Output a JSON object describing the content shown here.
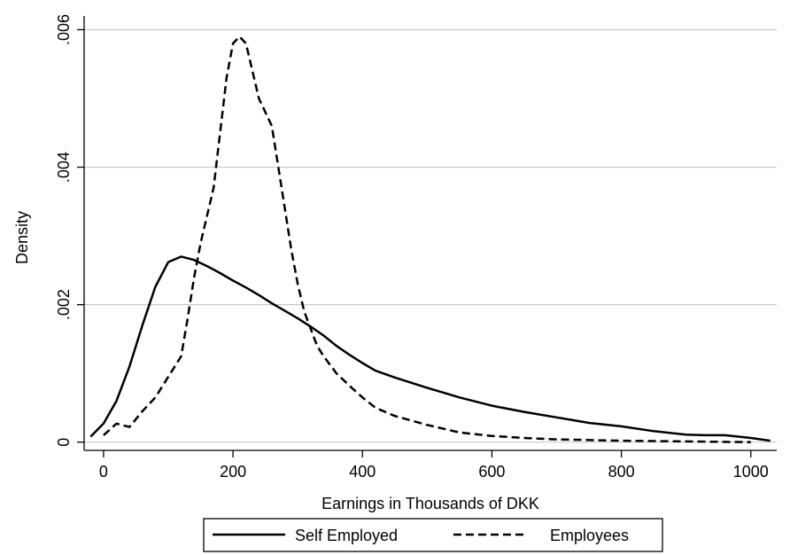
{
  "chart_data": {
    "type": "line",
    "title": "",
    "xlabel": "Earnings in Thousands of DKK",
    "ylabel": "Density",
    "xlim": [
      -30,
      1040
    ],
    "ylim": [
      -0.00012,
      0.0062
    ],
    "grid": "horizontal",
    "legend_placement": "bottom",
    "x_ticks": [
      {
        "value": 0,
        "label": "0"
      },
      {
        "value": 200,
        "label": "200"
      },
      {
        "value": 400,
        "label": "400"
      },
      {
        "value": 600,
        "label": "600"
      },
      {
        "value": 800,
        "label": "800"
      },
      {
        "value": 1000,
        "label": "1000"
      }
    ],
    "y_ticks": [
      {
        "value": 0,
        "label": "0"
      },
      {
        "value": 0.002,
        "label": ".002"
      },
      {
        "value": 0.004,
        "label": ".004"
      },
      {
        "value": 0.006,
        "label": ".006"
      }
    ],
    "series": [
      {
        "name": "Self Employed",
        "style": "solid",
        "color": "#000000",
        "x": [
          -20,
          0,
          20,
          40,
          60,
          80,
          100,
          120,
          140,
          160,
          180,
          200,
          220,
          240,
          260,
          280,
          300,
          320,
          340,
          360,
          380,
          400,
          420,
          450,
          500,
          550,
          600,
          650,
          700,
          750,
          800,
          850,
          900,
          930,
          960,
          1000,
          1030
        ],
        "y": [
          8e-05,
          0.00027,
          0.0006,
          0.0011,
          0.0017,
          0.00226,
          0.00262,
          0.0027,
          0.00265,
          0.00256,
          0.00246,
          0.00235,
          0.00225,
          0.00214,
          0.00202,
          0.00191,
          0.0018,
          0.00168,
          0.00155,
          0.0014,
          0.00127,
          0.00115,
          0.00104,
          0.00094,
          0.00079,
          0.00065,
          0.00053,
          0.00044,
          0.00036,
          0.00028,
          0.00023,
          0.00016,
          0.00011,
          0.0001,
          0.0001,
          6e-05,
          2e-05
        ]
      },
      {
        "name": "Employees",
        "style": "dashed",
        "color": "#000000",
        "x": [
          0,
          20,
          40,
          60,
          80,
          100,
          120,
          130,
          140,
          150,
          160,
          170,
          180,
          190,
          200,
          210,
          220,
          230,
          240,
          250,
          260,
          270,
          280,
          290,
          300,
          310,
          320,
          330,
          340,
          360,
          380,
          400,
          420,
          450,
          500,
          550,
          600,
          650,
          700,
          800,
          900,
          1000
        ],
        "y": [
          0.0001,
          0.00027,
          0.00022,
          0.00045,
          0.00065,
          0.00095,
          0.00125,
          0.0018,
          0.0024,
          0.0029,
          0.0033,
          0.0037,
          0.0045,
          0.0053,
          0.0058,
          0.0059,
          0.0058,
          0.0054,
          0.005,
          0.0048,
          0.0046,
          0.004,
          0.0034,
          0.0028,
          0.0023,
          0.0019,
          0.00165,
          0.0014,
          0.00125,
          0.001,
          0.00082,
          0.00065,
          0.0005,
          0.00038,
          0.00025,
          0.00014,
          9e-05,
          6e-05,
          4e-05,
          2e-05,
          1e-05,
          0.0
        ]
      }
    ]
  }
}
